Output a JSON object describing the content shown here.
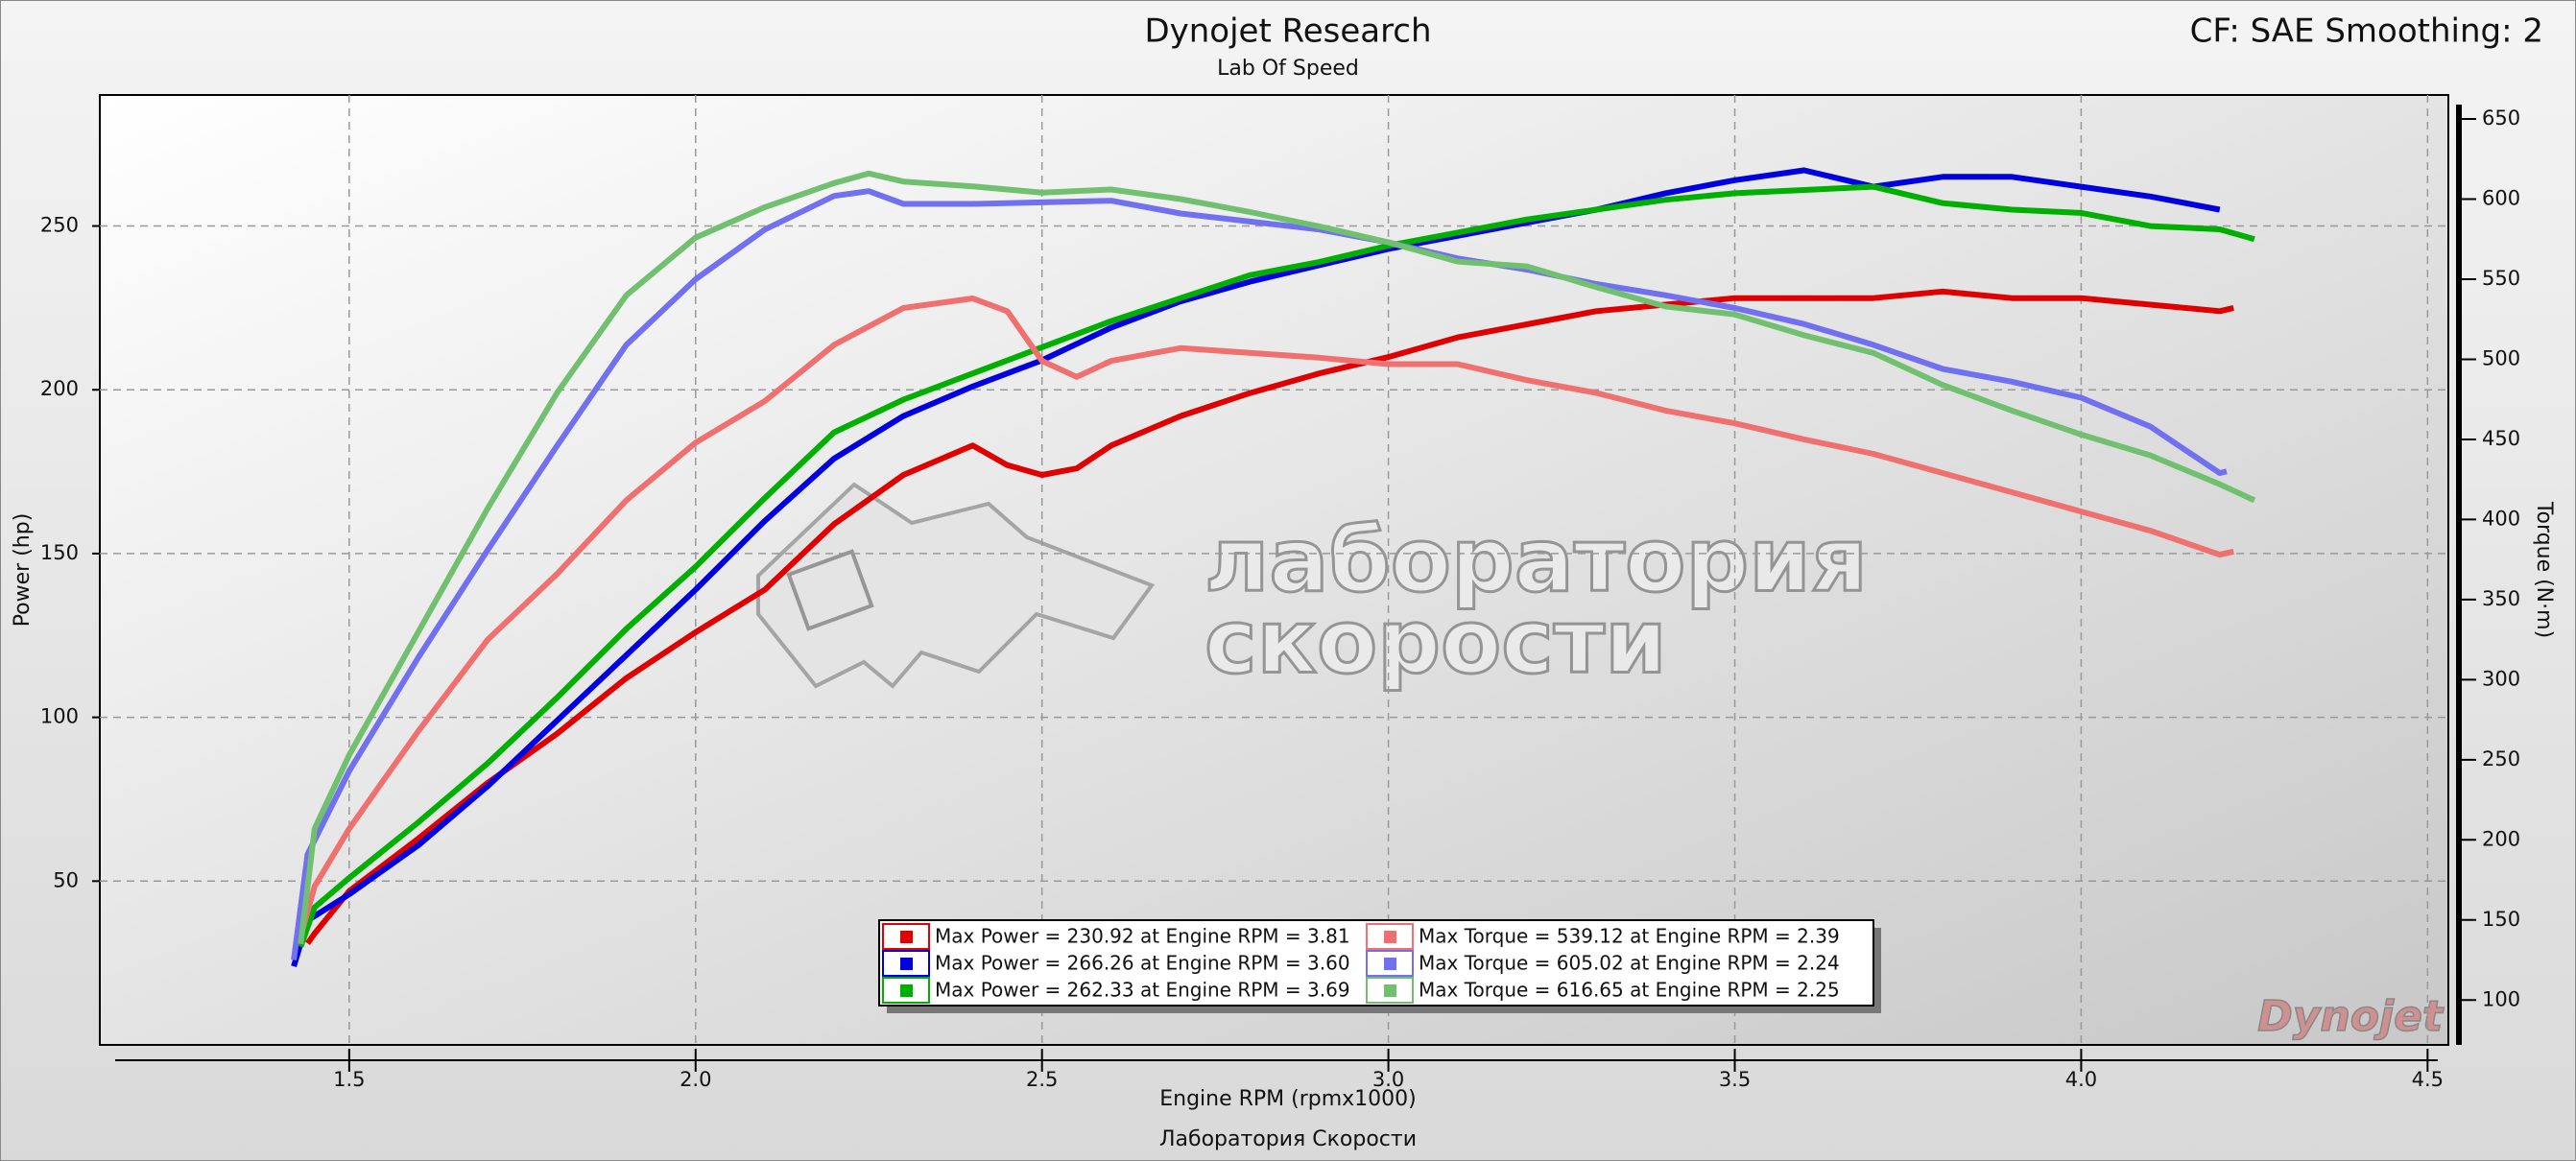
{
  "chart_data": {
    "type": "line",
    "title": "Dynojet Research",
    "subtitle": "Lab Of Speed",
    "corner_note": "CF: SAE Smoothing: 2",
    "x_label": "Engine RPM (rpmx1000)",
    "y_label": "Power (hp)",
    "y2_label": "Torque (N·m)",
    "footer": "Лаборатория Скорости",
    "watermark": [
      "лаборатория",
      "скорости"
    ],
    "logo": "Dynojet",
    "grid": true,
    "legend": "bottom",
    "xlim": [
      1.14,
      4.53
    ],
    "xticks": [
      {
        "value": 1.5,
        "label": "1.5"
      },
      {
        "value": 2,
        "label": "2.0"
      },
      {
        "value": 2.5,
        "label": "2.5"
      },
      {
        "value": 3,
        "label": "3.0"
      },
      {
        "value": 3.5,
        "label": "3.5"
      },
      {
        "value": 4,
        "label": "4.0"
      },
      {
        "value": 4.5,
        "label": "4.5"
      }
    ],
    "ylim": [
      0,
      290
    ],
    "yticks": [
      50,
      100,
      150,
      200,
      250
    ],
    "y2lim": [
      72,
      665
    ],
    "y2ticks": [
      100,
      150,
      200,
      250,
      300,
      350,
      400,
      450,
      500,
      550,
      600,
      650
    ],
    "series": [
      {
        "name": "Max Power = 230.92 at Engine RPM = 3.81",
        "color": "#e00000",
        "axis": "y",
        "x": [
          1.44,
          1.45,
          1.5,
          1.6,
          1.7,
          1.8,
          1.9,
          2.0,
          2.1,
          2.2,
          2.3,
          2.4,
          2.45,
          2.5,
          2.55,
          2.6,
          2.7,
          2.8,
          2.9,
          3.0,
          3.1,
          3.2,
          3.3,
          3.4,
          3.5,
          3.6,
          3.7,
          3.8,
          3.9,
          4.0,
          4.1,
          4.2,
          4.22
        ],
        "values": [
          31,
          34,
          47,
          63,
          80,
          95,
          112,
          126,
          139,
          159,
          174,
          183,
          177,
          174,
          176,
          183,
          192,
          199,
          205,
          210,
          216,
          220,
          224,
          226,
          228,
          228,
          228,
          230,
          228,
          228,
          226,
          224,
          225
        ]
      },
      {
        "name": "Max Power = 266.26 at Engine RPM = 3.60",
        "color": "#0000e0",
        "axis": "y",
        "x": [
          1.42,
          1.44,
          1.5,
          1.6,
          1.7,
          1.8,
          1.9,
          2.0,
          2.1,
          2.2,
          2.3,
          2.4,
          2.5,
          2.6,
          2.7,
          2.8,
          2.9,
          3.0,
          3.1,
          3.2,
          3.3,
          3.4,
          3.5,
          3.6,
          3.7,
          3.8,
          3.9,
          4.0,
          4.1,
          4.2
        ],
        "values": [
          24,
          38,
          46,
          61,
          79,
          99,
          119,
          139,
          160,
          179,
          192,
          201,
          209,
          219,
          227,
          233,
          238,
          243,
          247,
          251,
          255,
          260,
          264,
          267,
          262,
          265,
          265,
          262,
          259,
          255
        ]
      },
      {
        "name": "Max Power = 262.33 at Engine RPM = 3.69",
        "color": "#00b000",
        "axis": "y",
        "x": [
          1.43,
          1.45,
          1.5,
          1.6,
          1.7,
          1.8,
          1.9,
          2.0,
          2.1,
          2.2,
          2.3,
          2.4,
          2.5,
          2.6,
          2.7,
          2.8,
          2.9,
          3.0,
          3.1,
          3.2,
          3.3,
          3.4,
          3.5,
          3.6,
          3.7,
          3.8,
          3.9,
          4.0,
          4.1,
          4.2,
          4.25
        ],
        "values": [
          30,
          42,
          51,
          68,
          86,
          106,
          127,
          146,
          167,
          187,
          197,
          205,
          213,
          221,
          228,
          235,
          239,
          244,
          248,
          252,
          255,
          258,
          260,
          261,
          262,
          257,
          255,
          254,
          250,
          249,
          246
        ]
      },
      {
        "name": "Max Torque = 539.12 at Engine RPM = 2.39",
        "color": "#f07070",
        "axis": "y2",
        "x": [
          1.43,
          1.45,
          1.5,
          1.6,
          1.7,
          1.8,
          1.9,
          2.0,
          2.1,
          2.2,
          2.3,
          2.4,
          2.45,
          2.5,
          2.55,
          2.6,
          2.7,
          2.8,
          2.9,
          3.0,
          3.1,
          3.2,
          3.3,
          3.4,
          3.5,
          3.6,
          3.7,
          3.8,
          3.9,
          4.0,
          4.1,
          4.2,
          4.22
        ],
        "values": [
          140,
          171,
          207,
          268,
          325,
          366,
          412,
          448,
          474,
          509,
          532,
          538,
          530,
          499,
          489,
          499,
          507,
          504,
          501,
          497,
          497,
          487,
          479,
          468,
          460,
          450,
          441,
          429,
          417,
          405,
          393,
          378,
          380
        ]
      },
      {
        "name": "Max Torque = 605.02 at Engine RPM = 2.24",
        "color": "#7070f0",
        "axis": "y2",
        "x": [
          1.42,
          1.44,
          1.5,
          1.6,
          1.7,
          1.8,
          1.9,
          2.0,
          2.1,
          2.2,
          2.25,
          2.3,
          2.4,
          2.5,
          2.6,
          2.7,
          2.8,
          2.9,
          3.0,
          3.1,
          3.2,
          3.3,
          3.4,
          3.5,
          3.6,
          3.7,
          3.8,
          3.9,
          4.0,
          4.1,
          4.2,
          4.21
        ],
        "values": [
          125,
          191,
          243,
          314,
          381,
          446,
          509,
          550,
          581,
          602,
          605,
          597,
          597,
          598,
          599,
          591,
          586,
          581,
          573,
          563,
          556,
          547,
          540,
          532,
          522,
          509,
          494,
          486,
          476,
          458,
          429,
          430
        ]
      },
      {
        "name": "Max Torque = 616.65 at Engine RPM = 2.25",
        "color": "#70c070",
        "axis": "y2",
        "x": [
          1.43,
          1.45,
          1.5,
          1.6,
          1.7,
          1.8,
          1.9,
          2.0,
          2.1,
          2.2,
          2.25,
          2.3,
          2.4,
          2.5,
          2.6,
          2.7,
          2.8,
          2.9,
          3.0,
          3.1,
          3.2,
          3.3,
          3.4,
          3.5,
          3.6,
          3.7,
          3.8,
          3.9,
          4.0,
          4.1,
          4.2,
          4.25
        ],
        "values": [
          135,
          207,
          253,
          330,
          407,
          479,
          540,
          576,
          595,
          610,
          616,
          611,
          608,
          604,
          606,
          600,
          592,
          583,
          573,
          561,
          558,
          545,
          533,
          528,
          515,
          504,
          484,
          468,
          453,
          440,
          422,
          412
        ]
      }
    ]
  }
}
